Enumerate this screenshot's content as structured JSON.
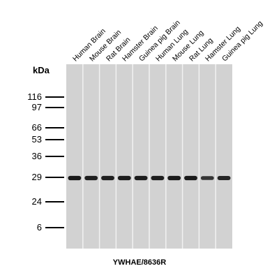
{
  "unit_label": "kDa",
  "lanes": [
    {
      "label": "Human Brain",
      "band_intensity": 0.95
    },
    {
      "label": "Mouse Brain",
      "band_intensity": 0.9
    },
    {
      "label": "Rat Brain",
      "band_intensity": 0.9
    },
    {
      "label": "Hamster Brain",
      "band_intensity": 0.92
    },
    {
      "label": "Guinea pig Brain",
      "band_intensity": 0.92
    },
    {
      "label": "Human Lung",
      "band_intensity": 0.92
    },
    {
      "label": "Mouse Lung",
      "band_intensity": 0.95
    },
    {
      "label": "Rat Lung",
      "band_intensity": 0.95
    },
    {
      "label": "Hamster Lung",
      "band_intensity": 0.7
    },
    {
      "label": "Guinea pig Lung",
      "band_intensity": 0.85
    }
  ],
  "markers": [
    "116",
    "97",
    "66",
    "53",
    "36",
    "29",
    "24",
    "6"
  ],
  "band_marker": "29",
  "caption": "YWHAE/8636R",
  "colors": {
    "membrane": "#d2d2d2",
    "lane_divider": "#f2f2f2",
    "band": "#151515"
  }
}
